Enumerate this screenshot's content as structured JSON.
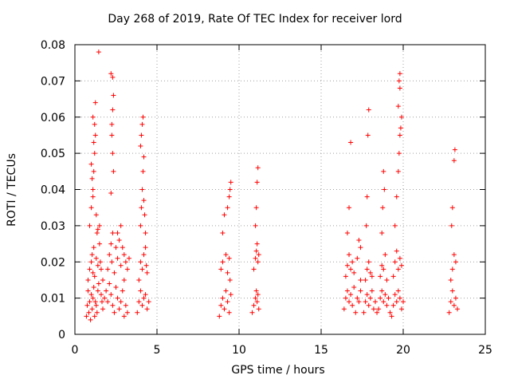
{
  "chart_data": {
    "type": "scatter",
    "title": "Day 268 of 2019, Rate Of TEC Index for receiver lord",
    "xlabel": "GPS time / hours",
    "ylabel": "ROTI / TECUs",
    "xlim": [
      0,
      25
    ],
    "ylim": [
      0,
      0.08
    ],
    "xticks": [
      0,
      5,
      10,
      15,
      20,
      25
    ],
    "yticks": [
      0,
      0.01,
      0.02,
      0.03,
      0.04,
      0.05,
      0.06,
      0.07,
      0.08
    ],
    "xtick_labels": [
      "0",
      "5",
      "10",
      "15",
      "20",
      "25"
    ],
    "ytick_labels": [
      "0",
      "0.01",
      "0.02",
      "0.03",
      "0.04",
      "0.05",
      "0.06",
      "0.07",
      "0.08"
    ],
    "grid": true,
    "marker": "+",
    "color": "#ff0000",
    "series": [
      {
        "x": [
          0.7,
          0.75,
          0.8,
          0.85,
          0.9,
          0.95,
          1.0,
          1.05,
          1.1,
          1.15,
          1.2,
          1.25,
          1.3,
          1.35,
          1.4,
          0.8,
          0.9,
          1.0,
          1.05,
          1.1,
          1.15,
          1.2,
          1.3,
          1.4,
          1.45,
          0.9,
          1.0,
          1.1,
          1.15,
          1.2,
          1.25,
          1.3,
          1.35,
          1.1,
          1.2,
          1.25,
          1.15,
          1.05,
          1.0,
          1.1,
          1.4,
          1.45,
          1.5,
          1.55,
          1.6,
          1.65,
          1.7,
          1.5,
          1.6,
          1.7,
          1.8,
          1.9,
          2.0,
          2.1,
          2.2,
          2.3,
          2.4,
          2.5,
          2.6,
          2.7,
          2.8,
          2.9,
          3.0,
          3.1,
          3.2,
          2.0,
          2.1,
          2.2,
          2.25,
          2.3,
          2.4,
          2.5,
          2.6,
          2.8,
          3.0,
          2.2,
          2.25,
          2.3,
          2.35,
          2.2,
          2.3,
          2.25,
          2.3,
          2.35,
          2.6,
          2.7,
          2.8,
          2.9,
          3.0,
          3.1,
          3.2,
          3.3,
          3.8,
          3.9,
          4.0,
          4.1,
          4.2,
          4.3,
          4.4,
          4.5,
          3.9,
          4.0,
          4.1,
          4.2,
          4.3,
          4.35,
          4.4,
          4.0,
          4.05,
          4.1,
          4.15,
          4.2,
          4.0,
          4.05,
          4.1,
          4.15,
          4.2,
          4.25,
          4.3,
          8.8,
          8.9,
          9.0,
          9.1,
          9.2,
          9.3,
          9.4,
          9.5,
          8.9,
          9.0,
          9.2,
          9.3,
          9.4,
          9.45,
          9.0,
          9.1,
          9.3,
          9.4,
          9.45,
          9.5,
          10.8,
          10.9,
          11.0,
          11.05,
          11.1,
          11.15,
          11.2,
          10.9,
          11.0,
          11.05,
          11.1,
          11.15,
          11.2,
          11.0,
          11.05,
          11.1,
          11.15,
          16.4,
          16.5,
          16.6,
          16.7,
          16.8,
          16.9,
          17.0,
          17.1,
          17.2,
          17.3,
          17.4,
          16.5,
          16.6,
          16.7,
          16.8,
          16.9,
          17.0,
          17.2,
          17.4,
          16.6,
          16.7,
          16.8,
          17.3,
          17.4,
          17.6,
          17.7,
          17.8,
          17.9,
          18.0,
          18.1,
          18.2,
          18.3,
          18.4,
          17.7,
          17.8,
          17.9,
          18.0,
          18.1,
          17.75,
          17.8,
          17.85,
          17.9,
          18.5,
          18.6,
          18.7,
          18.8,
          18.9,
          19.0,
          19.1,
          19.2,
          18.6,
          18.7,
          18.8,
          18.9,
          19.0,
          18.7,
          18.75,
          18.8,
          18.85,
          19.3,
          19.4,
          19.5,
          19.6,
          19.7,
          19.8,
          19.9,
          20.0,
          19.4,
          19.5,
          19.6,
          19.7,
          19.8,
          19.9,
          19.5,
          19.6,
          19.7,
          19.75,
          19.8,
          19.85,
          19.9,
          19.7,
          19.8,
          19.75,
          19.8,
          22.8,
          22.9,
          23.0,
          23.1,
          23.2,
          23.3,
          22.9,
          23.0,
          23.1,
          23.2,
          22.95,
          23.0,
          23.1,
          23.15
        ],
        "y": [
          0.005,
          0.008,
          0.012,
          0.006,
          0.009,
          0.004,
          0.011,
          0.007,
          0.01,
          0.013,
          0.005,
          0.009,
          0.008,
          0.006,
          0.012,
          0.015,
          0.018,
          0.02,
          0.022,
          0.017,
          0.024,
          0.016,
          0.021,
          0.019,
          0.014,
          0.03,
          0.035,
          0.04,
          0.045,
          0.05,
          0.055,
          0.033,
          0.028,
          0.06,
          0.058,
          0.064,
          0.053,
          0.043,
          0.047,
          0.038,
          0.029,
          0.078,
          0.025,
          0.02,
          0.011,
          0.009,
          0.015,
          0.03,
          0.018,
          0.007,
          0.01,
          0.012,
          0.009,
          0.014,
          0.011,
          0.008,
          0.006,
          0.013,
          0.01,
          0.007,
          0.009,
          0.012,
          0.005,
          0.008,
          0.006,
          0.018,
          0.022,
          0.025,
          0.02,
          0.028,
          0.017,
          0.024,
          0.021,
          0.019,
          0.015,
          0.039,
          0.055,
          0.062,
          0.066,
          0.072,
          0.071,
          0.058,
          0.05,
          0.045,
          0.028,
          0.026,
          0.03,
          0.024,
          0.022,
          0.02,
          0.018,
          0.021,
          0.006,
          0.009,
          0.012,
          0.008,
          0.01,
          0.011,
          0.007,
          0.009,
          0.015,
          0.02,
          0.018,
          0.022,
          0.024,
          0.019,
          0.017,
          0.03,
          0.035,
          0.04,
          0.045,
          0.049,
          0.052,
          0.055,
          0.058,
          0.06,
          0.037,
          0.033,
          0.028,
          0.005,
          0.008,
          0.01,
          0.007,
          0.012,
          0.009,
          0.006,
          0.011,
          0.018,
          0.02,
          0.022,
          0.017,
          0.021,
          0.015,
          0.028,
          0.033,
          0.035,
          0.038,
          0.04,
          0.042,
          0.006,
          0.008,
          0.01,
          0.012,
          0.009,
          0.011,
          0.007,
          0.018,
          0.021,
          0.023,
          0.025,
          0.02,
          0.022,
          0.03,
          0.035,
          0.042,
          0.046,
          0.007,
          0.01,
          0.012,
          0.009,
          0.011,
          0.008,
          0.013,
          0.006,
          0.01,
          0.009,
          0.012,
          0.016,
          0.019,
          0.022,
          0.018,
          0.02,
          0.017,
          0.021,
          0.015,
          0.028,
          0.035,
          0.053,
          0.026,
          0.024,
          0.006,
          0.009,
          0.011,
          0.008,
          0.01,
          0.012,
          0.007,
          0.009,
          0.006,
          0.015,
          0.018,
          0.02,
          0.017,
          0.016,
          0.03,
          0.038,
          0.055,
          0.062,
          0.007,
          0.01,
          0.012,
          0.009,
          0.011,
          0.008,
          0.01,
          0.006,
          0.016,
          0.019,
          0.018,
          0.022,
          0.015,
          0.028,
          0.035,
          0.045,
          0.04,
          0.005,
          0.008,
          0.011,
          0.009,
          0.012,
          0.01,
          0.007,
          0.009,
          0.016,
          0.02,
          0.023,
          0.018,
          0.021,
          0.019,
          0.03,
          0.038,
          0.045,
          0.05,
          0.055,
          0.057,
          0.06,
          0.063,
          0.068,
          0.07,
          0.072,
          0.006,
          0.009,
          0.012,
          0.008,
          0.01,
          0.007,
          0.015,
          0.018,
          0.022,
          0.02,
          0.03,
          0.035,
          0.048,
          0.051
        ]
      }
    ]
  }
}
